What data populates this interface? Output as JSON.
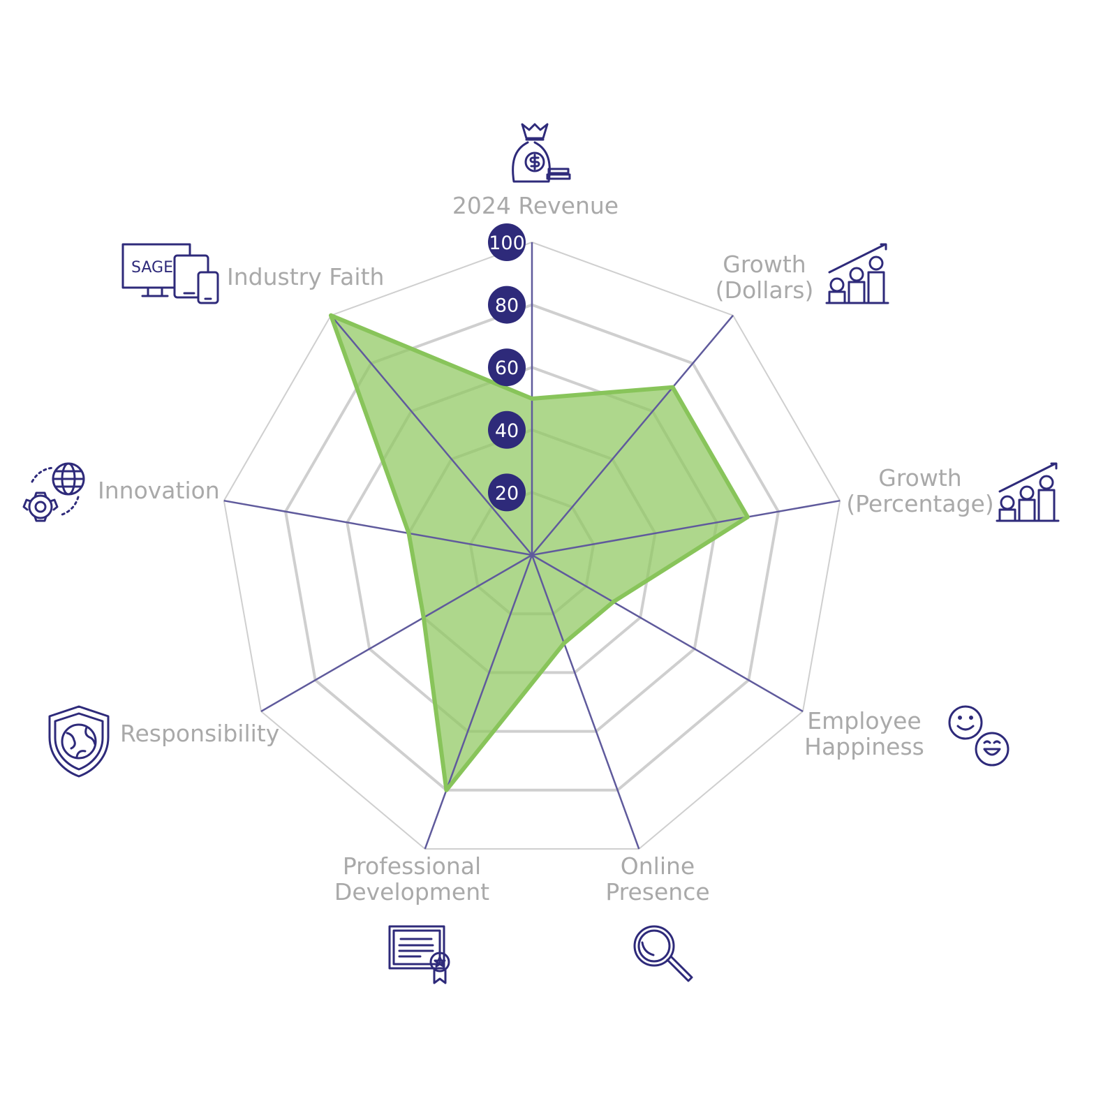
{
  "chart_data": {
    "type": "radar",
    "categories": [
      "2024 Revenue",
      "Growth (Dollars)",
      "Growth (Percentage)",
      "Employee Happiness",
      "Online Presence",
      "Professional Development",
      "Responsibility",
      "Innovation",
      "Industry Faith"
    ],
    "label_lines": [
      [
        "2024 Revenue"
      ],
      [
        "Growth",
        "(Dollars)"
      ],
      [
        "Growth",
        "(Percentage)"
      ],
      [
        "Employee",
        "Happiness"
      ],
      [
        "Online",
        "Presence"
      ],
      [
        "Professional",
        "Development"
      ],
      [
        "Responsibility"
      ],
      [
        "Innovation"
      ],
      [
        "Industry Faith"
      ]
    ],
    "icons": [
      "money-bag-icon",
      "coin-stacks-growth-icon",
      "coin-stacks-growth-icon",
      "smiley-faces-icon",
      "magnifying-glass-icon",
      "certificate-icon",
      "shield-globe-icon",
      "globe-gear-icon",
      "sage-devices-icon"
    ],
    "values": [
      50,
      70,
      70,
      30,
      30,
      80,
      40,
      40,
      100
    ],
    "rlim": [
      0,
      100
    ],
    "ticks": [
      "20",
      "40",
      "60",
      "80",
      "100"
    ],
    "colors": {
      "fill": "#8fc860",
      "stroke": "#88c45a",
      "axis": "#5f5a9c",
      "grid": "#cfcfcf",
      "badge": "#2e2a7a",
      "icon": "#2e2a7a",
      "label": "#a9a9a9"
    }
  }
}
